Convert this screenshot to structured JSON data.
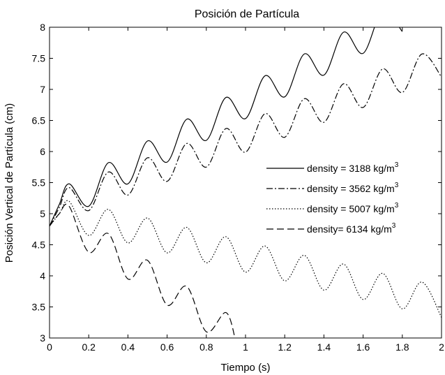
{
  "chart_data": {
    "type": "line",
    "title": "Posición de Partícula",
    "xlabel": "Tiempo (s)",
    "ylabel": "Posición Vertical de Partícula (cm)",
    "xlim": [
      0,
      2
    ],
    "ylim": [
      3,
      8
    ],
    "xticks": [
      "0",
      "0.2",
      "0.4",
      "0.6",
      "0.8",
      "1",
      "1.2",
      "1.4",
      "1.6",
      "1.8",
      "2"
    ],
    "yticks": [
      "3",
      "3.5",
      "4",
      "4.5",
      "5",
      "5.5",
      "6",
      "6.5",
      "7",
      "7.5",
      "8"
    ],
    "grid": false,
    "legend_position": "center-right",
    "series": [
      {
        "name": "density = 3188 kg/m3",
        "legend_text": "density = 3188 kg/m",
        "legend_sup": "3",
        "linestyle": "solid",
        "color": "#000000",
        "x": [
          0,
          0.05,
          0.1,
          0.2,
          0.3,
          0.4,
          0.5,
          0.6,
          0.7,
          0.8,
          0.9,
          1.0,
          1.1,
          1.2,
          1.3,
          1.4,
          1.5,
          1.6,
          1.7,
          1.8
        ],
        "y": [
          4.8,
          5.15,
          5.48,
          5.12,
          5.82,
          5.48,
          6.17,
          5.83,
          6.52,
          6.18,
          6.87,
          6.53,
          7.22,
          6.88,
          7.57,
          7.23,
          7.92,
          7.58,
          8.27,
          7.93
        ]
      },
      {
        "name": "density = 3562 kg/m3",
        "legend_text": "density = 3562 kg/m",
        "legend_sup": "3",
        "linestyle": "dashdot",
        "color": "#000000",
        "x": [
          0,
          0.05,
          0.1,
          0.2,
          0.3,
          0.4,
          0.5,
          0.6,
          0.7,
          0.8,
          0.9,
          1.0,
          1.1,
          1.2,
          1.3,
          1.4,
          1.5,
          1.6,
          1.7,
          1.8,
          1.9,
          2.0
        ],
        "y": [
          4.8,
          5.1,
          5.42,
          5.05,
          5.67,
          5.3,
          5.9,
          5.52,
          6.13,
          5.75,
          6.37,
          5.99,
          6.61,
          6.23,
          6.85,
          6.47,
          7.09,
          6.71,
          7.33,
          6.95,
          7.57,
          7.2
        ]
      },
      {
        "name": "density = 5007 kg/m3",
        "legend_text": "density = 5007 kg/m",
        "legend_sup": "3",
        "linestyle": "dotted",
        "color": "#000000",
        "x": [
          0,
          0.05,
          0.1,
          0.2,
          0.3,
          0.4,
          0.5,
          0.6,
          0.7,
          0.8,
          0.9,
          1.0,
          1.1,
          1.2,
          1.3,
          1.4,
          1.5,
          1.6,
          1.7,
          1.8,
          1.9,
          2.0
        ],
        "y": [
          4.8,
          5.0,
          5.2,
          4.65,
          5.07,
          4.53,
          4.93,
          4.37,
          4.78,
          4.21,
          4.63,
          4.06,
          4.48,
          3.92,
          4.33,
          3.77,
          4.19,
          3.62,
          4.04,
          3.47,
          3.9,
          3.33
        ]
      },
      {
        "name": "density= 6134 kg/m3",
        "legend_text": "density= 6134 kg/m",
        "legend_sup": "3",
        "linestyle": "dashed",
        "color": "#000000",
        "x": [
          0,
          0.05,
          0.1,
          0.2,
          0.3,
          0.4,
          0.5,
          0.6,
          0.7,
          0.8,
          0.9,
          0.95
        ],
        "y": [
          4.8,
          5.0,
          5.12,
          4.38,
          4.68,
          3.95,
          4.25,
          3.53,
          3.83,
          3.1,
          3.41,
          2.95
        ]
      }
    ]
  }
}
